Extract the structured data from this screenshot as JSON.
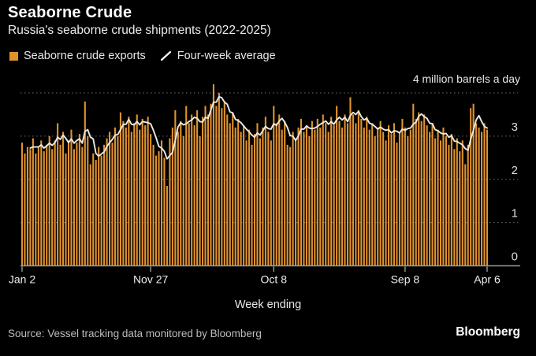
{
  "header": {
    "title": "Seaborne Crude",
    "subtitle": "Russia's seaborne crude shipments (2022-2025)"
  },
  "legend": {
    "bars_label": "Seaborne crude exports",
    "line_label": "Four-week average"
  },
  "footer": {
    "source": "Source: Vessel tracking data monitored by Bloomberg",
    "brand": "Bloomberg"
  },
  "colors": {
    "background": "#000000",
    "bar": "#E0922F",
    "line": "#E9E9E6",
    "grid": "#6A6A6A",
    "axis": "#9A9A9A",
    "tick_text": "#DCDCDC",
    "x_text": "#EDEDED"
  },
  "chart_data": {
    "type": "bar",
    "title": "Seaborne Crude",
    "subtitle": "Russia's seaborne crude shipments (2022-2025)",
    "unit_label": "4 million barrels a day",
    "xlabel": "Week ending",
    "ylabel": "million barrels a day",
    "ylim": [
      0,
      4.3
    ],
    "grid": "dotted-horizontal",
    "y_gridlines": [
      1,
      2,
      3,
      4
    ],
    "y_tick_labels": [
      3,
      2,
      1,
      0
    ],
    "x_ticks": [
      {
        "week": 0,
        "label": "Jan 2"
      },
      {
        "week": 47,
        "label": "Nov 27"
      },
      {
        "week": 92,
        "label": "Oct 8"
      },
      {
        "week": 140,
        "label": "Sep 8"
      },
      {
        "week": 170,
        "label": "Apr 6"
      }
    ],
    "series": [
      {
        "name": "Seaborne crude exports",
        "type": "bar",
        "values": [
          2.85,
          2.6,
          2.75,
          2.7,
          2.95,
          2.6,
          2.75,
          2.9,
          2.65,
          2.8,
          3.0,
          2.7,
          2.9,
          3.3,
          2.8,
          3.1,
          2.6,
          2.9,
          3.15,
          2.7,
          2.85,
          3.05,
          2.75,
          3.8,
          3.0,
          2.35,
          2.6,
          2.45,
          2.75,
          2.55,
          2.8,
          2.95,
          3.1,
          2.85,
          3.2,
          3.0,
          3.55,
          3.35,
          3.2,
          3.45,
          3.1,
          3.3,
          3.5,
          3.15,
          3.4,
          3.25,
          3.45,
          3.05,
          2.8,
          2.55,
          2.65,
          2.9,
          2.5,
          1.85,
          2.95,
          3.2,
          3.6,
          3.1,
          3.35,
          3.0,
          3.7,
          3.3,
          3.5,
          3.25,
          3.6,
          3.0,
          3.45,
          3.7,
          3.5,
          3.75,
          4.2,
          3.7,
          4.0,
          3.65,
          3.8,
          3.5,
          3.3,
          3.55,
          3.2,
          3.4,
          3.1,
          3.25,
          2.9,
          3.15,
          2.8,
          3.05,
          3.3,
          2.95,
          3.2,
          3.45,
          3.1,
          2.9,
          3.7,
          3.3,
          3.5,
          3.15,
          3.35,
          2.8,
          2.75,
          3.1,
          2.95,
          3.2,
          3.4,
          3.1,
          3.25,
          3.0,
          3.35,
          3.15,
          3.4,
          3.2,
          3.5,
          3.3,
          3.1,
          3.45,
          3.25,
          3.7,
          3.35,
          3.2,
          3.5,
          3.3,
          3.9,
          3.5,
          3.3,
          3.6,
          3.4,
          3.2,
          3.45,
          3.15,
          3.3,
          3.0,
          3.2,
          3.35,
          3.1,
          2.9,
          3.25,
          3.05,
          3.3,
          2.85,
          3.1,
          3.4,
          3.2,
          3.0,
          3.15,
          3.75,
          3.4,
          3.55,
          3.35,
          3.5,
          3.25,
          3.1,
          3.3,
          2.95,
          3.15,
          2.9,
          3.2,
          3.0,
          2.8,
          3.05,
          2.7,
          2.95,
          2.65,
          2.9,
          2.35,
          2.8,
          3.65,
          3.75,
          3.3,
          3.2,
          3.1,
          3.3,
          3.15
        ]
      },
      {
        "name": "Four-week average",
        "type": "line",
        "derived": "trailing-4-week-mean-of-series-0"
      }
    ]
  }
}
